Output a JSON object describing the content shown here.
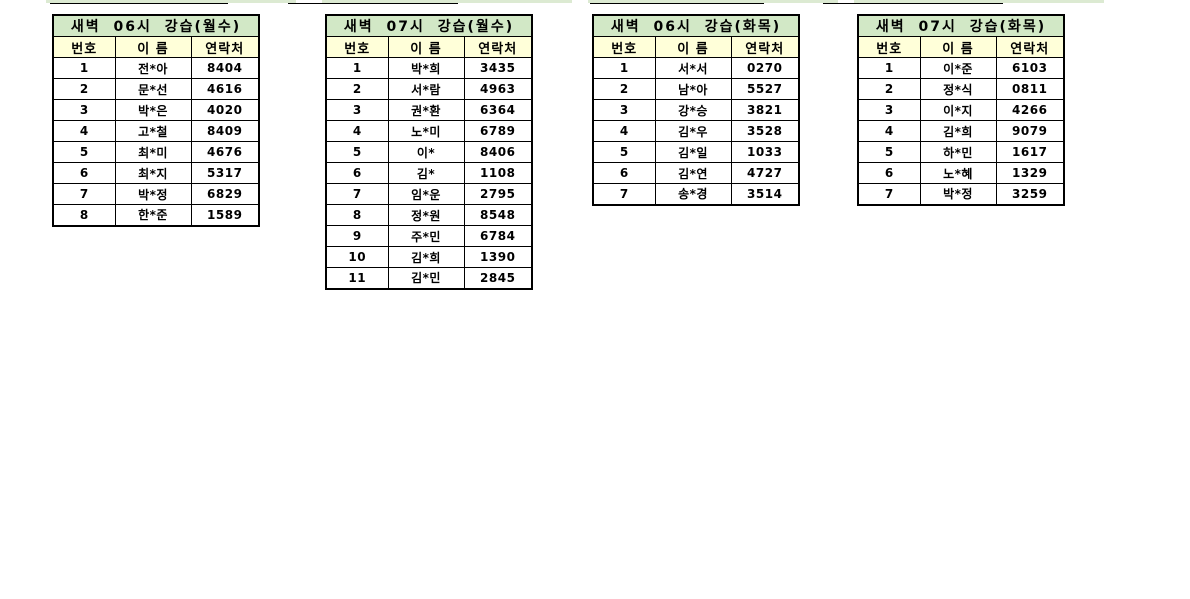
{
  "colors": {
    "title_bg": "#d2e8c6",
    "header_bg": "#ffffd9",
    "grid": "#000000",
    "fragment_green": "#dcead2",
    "page_bg": "#ffffff"
  },
  "columns": [
    "번호",
    "이 름",
    "연락처"
  ],
  "tables": [
    {
      "title": "새벽 06시 강습(월수)",
      "rows": [
        [
          "1",
          "전*아",
          "8404"
        ],
        [
          "2",
          "문*선",
          "4616"
        ],
        [
          "3",
          "박*은",
          "4020"
        ],
        [
          "4",
          "고*철",
          "8409"
        ],
        [
          "5",
          "최*미",
          "4676"
        ],
        [
          "6",
          "최*지",
          "5317"
        ],
        [
          "7",
          "박*정",
          "6829"
        ],
        [
          "8",
          "한*준",
          "1589"
        ]
      ]
    },
    {
      "title": "새벽 07시 강습(월수)",
      "rows": [
        [
          "1",
          "박*희",
          "3435"
        ],
        [
          "2",
          "서*람",
          "4963"
        ],
        [
          "3",
          "권*환",
          "6364"
        ],
        [
          "4",
          "노*미",
          "6789"
        ],
        [
          "5",
          "이*",
          "8406"
        ],
        [
          "6",
          "김*",
          "1108"
        ],
        [
          "7",
          "임*운",
          "2795"
        ],
        [
          "8",
          "정*원",
          "8548"
        ],
        [
          "9",
          "주*민",
          "6784"
        ],
        [
          "10",
          "김*희",
          "1390"
        ],
        [
          "11",
          "김*민",
          "2845"
        ]
      ]
    },
    {
      "title": "새벽 06시 강습(화목)",
      "rows": [
        [
          "1",
          "서*서",
          "0270"
        ],
        [
          "2",
          "남*아",
          "5527"
        ],
        [
          "3",
          "강*승",
          "3821"
        ],
        [
          "4",
          "김*우",
          "3528"
        ],
        [
          "5",
          "김*일",
          "1033"
        ],
        [
          "6",
          "김*연",
          "4727"
        ],
        [
          "7",
          "송*경",
          "3514"
        ]
      ]
    },
    {
      "title": "새벽 07시 강습(화목)",
      "rows": [
        [
          "1",
          "이*준",
          "6103"
        ],
        [
          "2",
          "정*식",
          "0811"
        ],
        [
          "3",
          "이*지",
          "4266"
        ],
        [
          "4",
          "김*희",
          "9079"
        ],
        [
          "5",
          "하*민",
          "1617"
        ],
        [
          "6",
          "노*혜",
          "1329"
        ],
        [
          "7",
          "박*정",
          "3259"
        ]
      ]
    }
  ]
}
